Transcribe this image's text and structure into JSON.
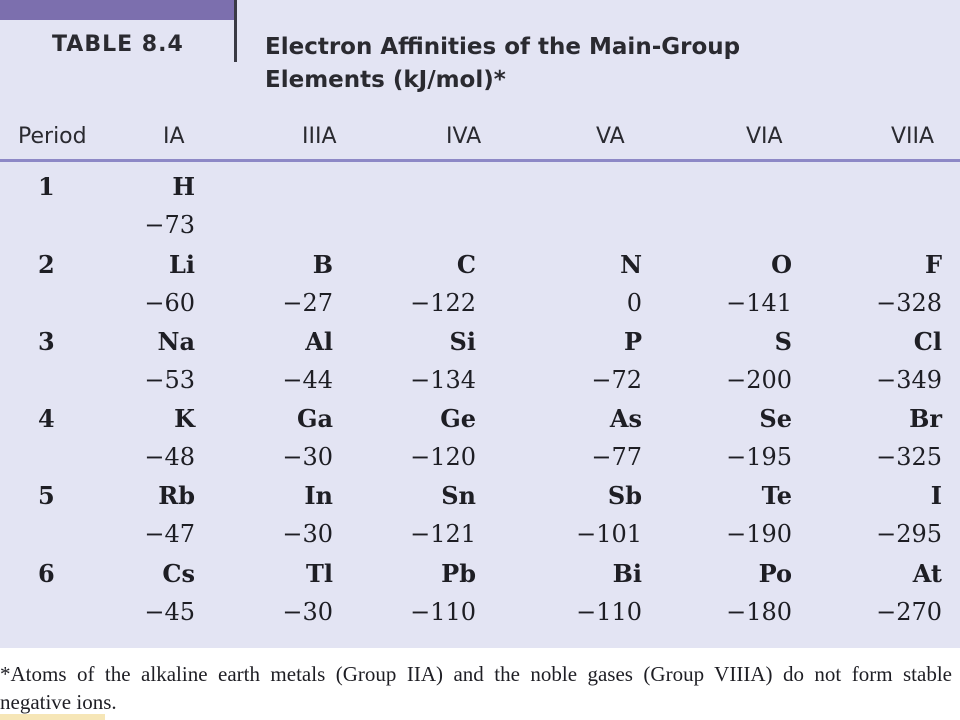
{
  "header": {
    "table_label": "TABLE 8.4",
    "title_line1": "Electron Affinities of the Main-Group",
    "title_line2": "Elements (kJ/mol)*"
  },
  "columns": [
    "Period",
    "IA",
    "IIIA",
    "IVA",
    "VA",
    "VIA",
    "VIIA"
  ],
  "rows": [
    {
      "period": "1",
      "cells": [
        {
          "symbol": "H",
          "value": "−73"
        },
        {
          "symbol": "",
          "value": ""
        },
        {
          "symbol": "",
          "value": ""
        },
        {
          "symbol": "",
          "value": ""
        },
        {
          "symbol": "",
          "value": ""
        },
        {
          "symbol": "",
          "value": ""
        }
      ]
    },
    {
      "period": "2",
      "cells": [
        {
          "symbol": "Li",
          "value": "−60"
        },
        {
          "symbol": "B",
          "value": "−27"
        },
        {
          "symbol": "C",
          "value": "−122"
        },
        {
          "symbol": "N",
          "value": "0"
        },
        {
          "symbol": "O",
          "value": "−141"
        },
        {
          "symbol": "F",
          "value": "−328"
        }
      ]
    },
    {
      "period": "3",
      "cells": [
        {
          "symbol": "Na",
          "value": "−53"
        },
        {
          "symbol": "Al",
          "value": "−44"
        },
        {
          "symbol": "Si",
          "value": "−134"
        },
        {
          "symbol": "P",
          "value": "−72"
        },
        {
          "symbol": "S",
          "value": "−200"
        },
        {
          "symbol": "Cl",
          "value": "−349"
        }
      ]
    },
    {
      "period": "4",
      "cells": [
        {
          "symbol": "K",
          "value": "−48"
        },
        {
          "symbol": "Ga",
          "value": "−30"
        },
        {
          "symbol": "Ge",
          "value": "−120"
        },
        {
          "symbol": "As",
          "value": "−77"
        },
        {
          "symbol": "Se",
          "value": "−195"
        },
        {
          "symbol": "Br",
          "value": "−325"
        }
      ]
    },
    {
      "period": "5",
      "cells": [
        {
          "symbol": "Rb",
          "value": "−47"
        },
        {
          "symbol": "In",
          "value": "−30"
        },
        {
          "symbol": "Sn",
          "value": "−121"
        },
        {
          "symbol": "Sb",
          "value": "−101"
        },
        {
          "symbol": "Te",
          "value": "−190"
        },
        {
          "symbol": "I",
          "value": "−295"
        }
      ]
    },
    {
      "period": "6",
      "cells": [
        {
          "symbol": "Cs",
          "value": "−45"
        },
        {
          "symbol": "Tl",
          "value": "−30"
        },
        {
          "symbol": "Pb",
          "value": "−110"
        },
        {
          "symbol": "Bi",
          "value": "−110"
        },
        {
          "symbol": "Po",
          "value": "−180"
        },
        {
          "symbol": "At",
          "value": "−270"
        }
      ]
    }
  ],
  "footnote": {
    "line1": "*Atoms of the alkaline earth metals (Group IIA) and the noble gases (Group VIIIA) do not form stable",
    "line2": "negative ions."
  },
  "colors": {
    "panel_background": "#e3e4f3",
    "accent_tab": "#7c6fae",
    "header_rule": "#8d88c6"
  }
}
